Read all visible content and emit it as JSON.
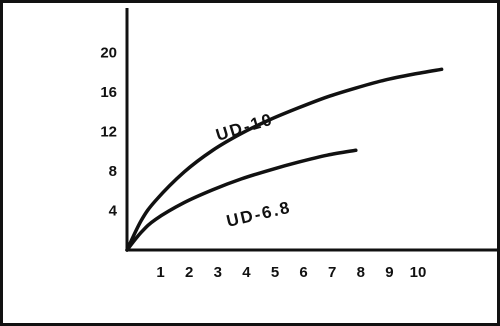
{
  "chart_data": {
    "type": "line",
    "title": "",
    "xlabel": "",
    "ylabel": "",
    "xlim": [
      0,
      12
    ],
    "ylim": [
      0,
      24
    ],
    "x_ticks": [
      1,
      2,
      3,
      4,
      5,
      6,
      7,
      8,
      9,
      10
    ],
    "y_ticks": [
      4,
      8,
      12,
      16,
      20
    ],
    "grid": false,
    "legend": "none",
    "series": [
      {
        "name": "UD-10",
        "x": [
          0,
          0.5,
          1,
          2,
          3,
          4,
          5,
          6,
          7,
          8,
          9,
          10,
          11
        ],
        "y": [
          0,
          3.0,
          5.0,
          7.9,
          10.1,
          11.8,
          13.2,
          14.4,
          15.5,
          16.4,
          17.2,
          17.8,
          18.3
        ]
      },
      {
        "name": "UD-6.8",
        "x": [
          0,
          0.5,
          1,
          2,
          3,
          4,
          5,
          6,
          7,
          8
        ],
        "y": [
          0,
          1.8,
          3.1,
          4.8,
          6.1,
          7.2,
          8.1,
          8.9,
          9.6,
          10.1
        ]
      }
    ]
  },
  "colors": {
    "line": "#111111",
    "background": "#ffffff"
  }
}
